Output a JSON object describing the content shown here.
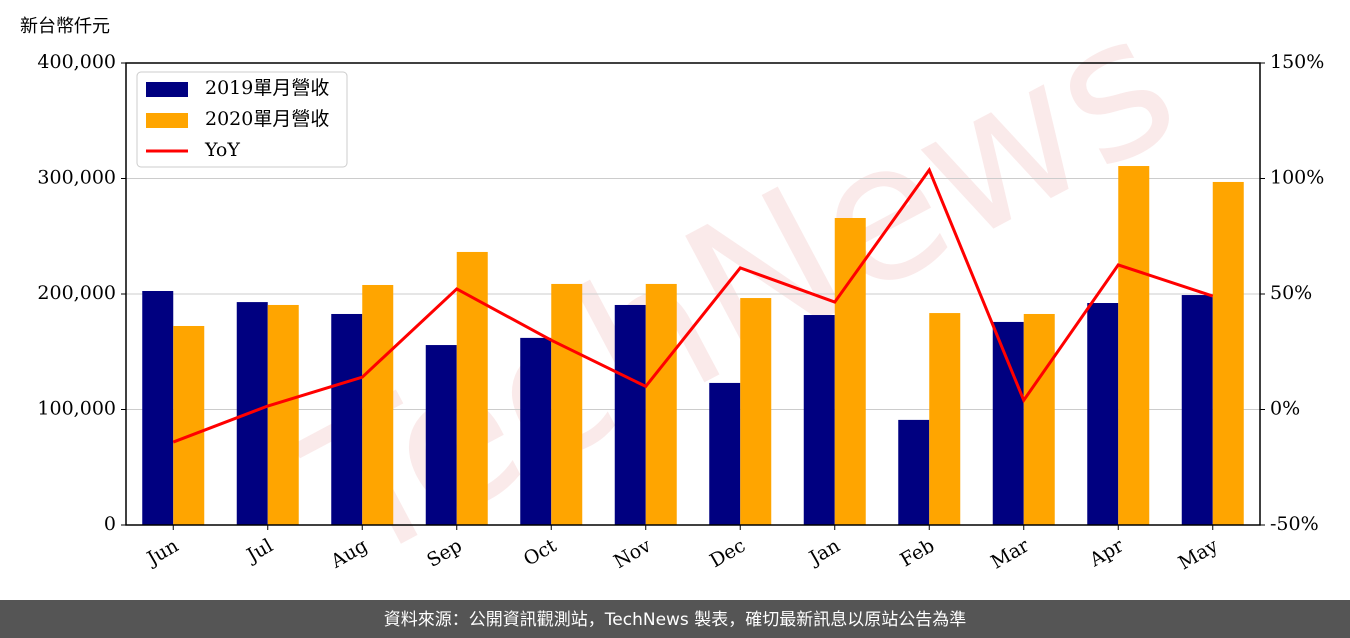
{
  "chart_data": {
    "type": "bar-line",
    "y_label": "新台幣仟元",
    "watermark": "TechNews",
    "categories": [
      "Jun",
      "Jul",
      "Aug",
      "Sep",
      "Oct",
      "Nov",
      "Dec",
      "Jan",
      "Feb",
      "Mar",
      "Apr",
      "May"
    ],
    "series": [
      {
        "name": "2019單月營收",
        "color": "#000080",
        "type": "bar",
        "values": [
          202600,
          193000,
          182700,
          155800,
          162000,
          190500,
          123000,
          181800,
          91000,
          175800,
          192200,
          199100
        ]
      },
      {
        "name": "2020單月營收",
        "color": "#ffa500",
        "type": "bar",
        "values": [
          172300,
          190500,
          207800,
          236400,
          208700,
          208700,
          196500,
          265800,
          183500,
          182700,
          310800,
          297000
        ]
      },
      {
        "name": "YoY",
        "color": "#ff0000",
        "type": "line",
        "axis": "y2",
        "values": [
          -14.1,
          1.5,
          14,
          52.2,
          30,
          10,
          61.3,
          46.5,
          103.7,
          4,
          62.6,
          49.1
        ]
      }
    ],
    "ylim": [
      0,
      400000
    ],
    "yticks": [
      0,
      {
        "value": 100000,
        "label": "100,000"
      },
      {
        "value": 200000,
        "label": "200,000"
      },
      {
        "value": 300000,
        "label": "300,000"
      },
      {
        "value": 400000,
        "label": "400,000"
      }
    ],
    "y2lim": [
      -50,
      150
    ],
    "y2ticks": [
      {
        "value": -50,
        "label": "-50%"
      },
      {
        "value": 0,
        "label": "0%"
      },
      {
        "value": 50,
        "label": "50%"
      },
      {
        "value": 100,
        "label": "100%"
      },
      {
        "value": 150,
        "label": "150%"
      }
    ],
    "grid": true,
    "legend": "upper left"
  },
  "footer": "資料來源：公開資訊觀測站，TechNews 製表，確切最新訊息以原站公告為準"
}
